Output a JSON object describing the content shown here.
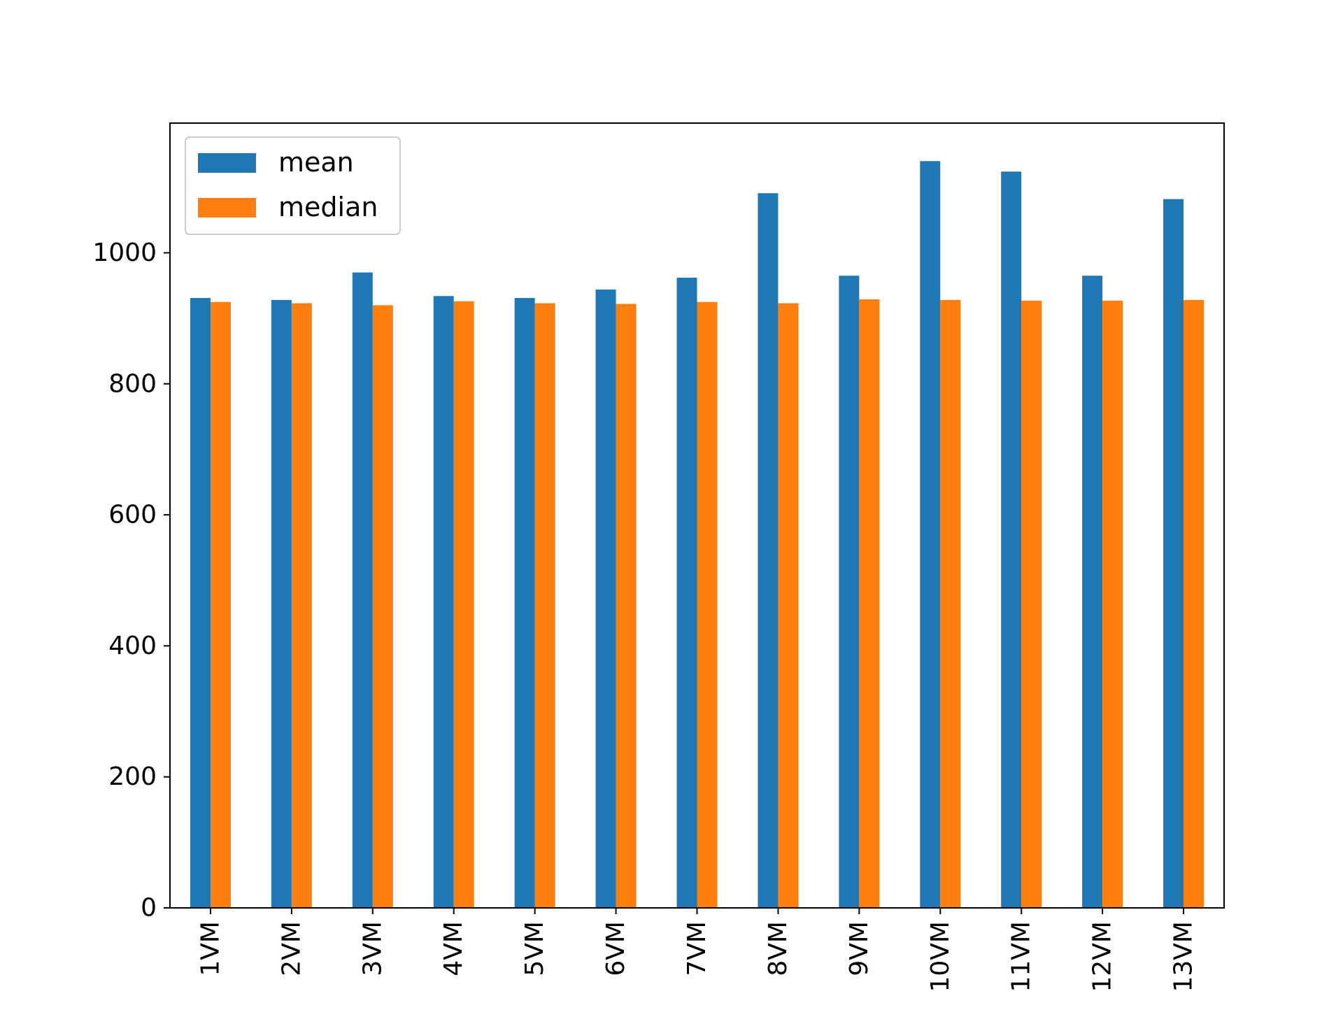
{
  "chart_data": {
    "type": "bar",
    "title": "",
    "xlabel": "",
    "ylabel": "",
    "categories": [
      "1VM",
      "2VM",
      "3VM",
      "4VM",
      "5VM",
      "6VM",
      "7VM",
      "8VM",
      "9VM",
      "10VM",
      "11VM",
      "12VM",
      "13VM"
    ],
    "series": [
      {
        "name": "mean",
        "color": "#1f77b4",
        "values": [
          931,
          928,
          970,
          934,
          931,
          944,
          962,
          1091,
          965,
          1140,
          1124,
          965,
          1082
        ]
      },
      {
        "name": "median",
        "color": "#ff7f0e",
        "values": [
          925,
          923,
          920,
          926,
          923,
          922,
          925,
          923,
          929,
          928,
          927,
          927,
          928
        ]
      }
    ],
    "ylim": [
      0,
      1198
    ],
    "yticks": [
      0,
      200,
      400,
      600,
      800,
      1000
    ],
    "ytick_labels": [
      "0",
      "200",
      "400",
      "600",
      "800",
      "1000"
    ],
    "xtick_rotation": "vertical",
    "grid": false,
    "legend_position": "top-left"
  }
}
